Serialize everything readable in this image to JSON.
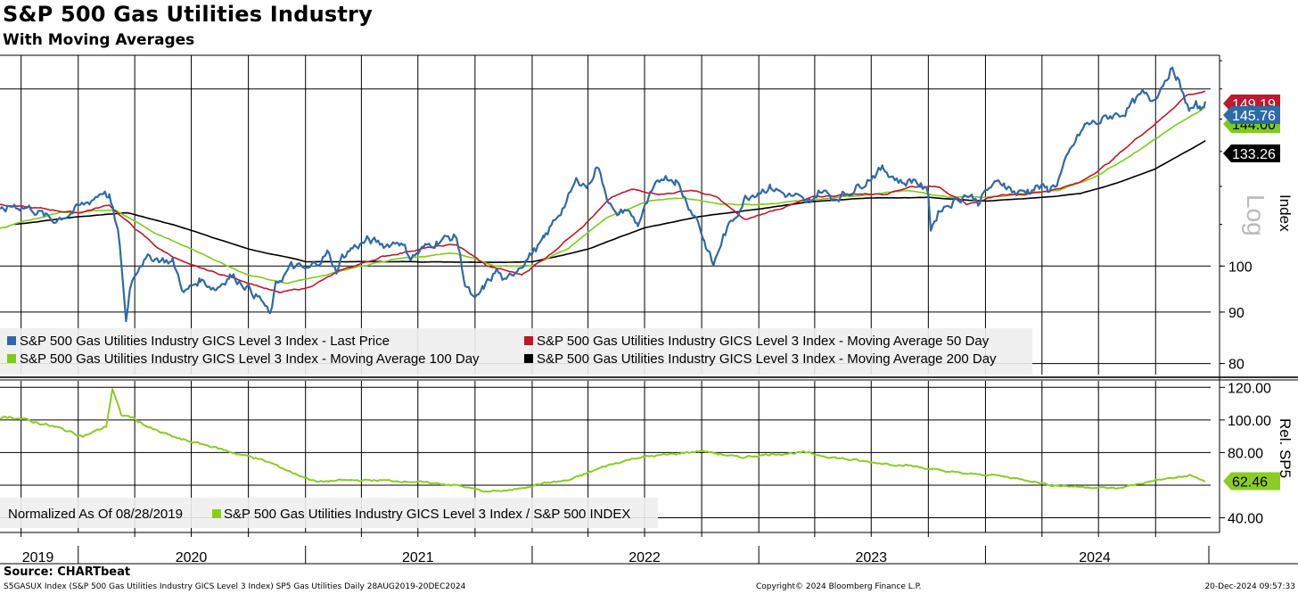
{
  "header": {
    "title": "S&P 500 Gas Utilities Industry",
    "subtitle": "With Moving Averages"
  },
  "footer": {
    "source": "Source: CHARTbeat",
    "left": "S5GASUX Index (S&P 500 Gas Utilities Industry GICS Level 3 Index) SP5 Gas Utilities  Daily 28AUG2019-20DEC2024",
    "middle": "Copyright© 2024 Bloomberg Finance L.P.",
    "right": "20-Dec-2024 09:57:33"
  },
  "colors": {
    "last_price": "#2e6aa8",
    "ma50": "#c0182c",
    "ma100": "#7dcc1c",
    "ma200": "#000000",
    "relative": "#8ccc22"
  },
  "chart_data": [
    {
      "type": "line",
      "scale": "log",
      "ylabel": "Index",
      "scale_label": "Log",
      "ylim": [
        78,
        162
      ],
      "yticks": [
        80,
        90,
        100
      ],
      "x_labels": [
        "2019",
        "2020",
        "2021",
        "2022",
        "2023",
        "2024"
      ],
      "x_range": [
        "2019-08-28",
        "2024-12-20"
      ],
      "grid": true,
      "legend_position": "bottom-left",
      "last_value_labels": [
        {
          "series": 0,
          "text": "145.76"
        },
        {
          "series": 1,
          "text": "149.19"
        },
        {
          "series": 2,
          "text": "144.00"
        },
        {
          "series": 3,
          "text": "133.26"
        }
      ],
      "series": [
        {
          "name": "S&P 500 Gas Utilities Industry GICS Level 3 Index - Last Price",
          "x": [
            "2019-08-28",
            "2019-09-20",
            "2019-10-20",
            "2019-11-20",
            "2019-12-20",
            "2020-01-20",
            "2020-02-10",
            "2020-02-20",
            "2020-03-05",
            "2020-03-12",
            "2020-03-18",
            "2020-03-25",
            "2020-04-10",
            "2020-05-01",
            "2020-06-01",
            "2020-06-20",
            "2020-07-15",
            "2020-08-10",
            "2020-09-01",
            "2020-09-25",
            "2020-10-10",
            "2020-10-25",
            "2020-11-05",
            "2020-11-15",
            "2020-12-10",
            "2021-01-05",
            "2021-01-20",
            "2021-02-05",
            "2021-02-20",
            "2021-03-01",
            "2021-03-15",
            "2021-04-10",
            "2021-05-10",
            "2021-06-01",
            "2021-06-20",
            "2021-07-10",
            "2021-08-01",
            "2021-09-01",
            "2021-09-15",
            "2021-10-01",
            "2021-10-15",
            "2021-11-05",
            "2021-11-20",
            "2021-12-10",
            "2022-01-01",
            "2022-01-20",
            "2022-02-10",
            "2022-03-01",
            "2022-03-15",
            "2022-04-01",
            "2022-04-15",
            "2022-05-01",
            "2022-05-15",
            "2022-06-01",
            "2022-06-20",
            "2022-07-10",
            "2022-08-01",
            "2022-08-20",
            "2022-09-10",
            "2022-09-25",
            "2022-10-05",
            "2022-10-20",
            "2022-11-05",
            "2022-11-20",
            "2022-12-10",
            "2023-01-01",
            "2023-01-20",
            "2023-02-10",
            "2023-03-01",
            "2023-03-20",
            "2023-04-10",
            "2023-05-01",
            "2023-05-20",
            "2023-06-10",
            "2023-07-01",
            "2023-07-20",
            "2023-08-05",
            "2023-08-20",
            "2023-09-10",
            "2023-10-01",
            "2023-10-05",
            "2023-10-20",
            "2023-11-10",
            "2023-12-01",
            "2023-12-20",
            "2024-01-10",
            "2024-02-01",
            "2024-02-20",
            "2024-03-10",
            "2024-03-25",
            "2024-04-10",
            "2024-04-25",
            "2024-05-10",
            "2024-05-25",
            "2024-06-10",
            "2024-07-01",
            "2024-07-20",
            "2024-08-10",
            "2024-08-25",
            "2024-09-10",
            "2024-09-25",
            "2024-10-10",
            "2024-10-25",
            "2024-11-05",
            "2024-11-15",
            "2024-11-25",
            "2024-12-05",
            "2024-12-12",
            "2024-12-20"
          ],
          "values": [
            113,
            115,
            114,
            111,
            113,
            116,
            119,
            117,
            108,
            98,
            88,
            96,
            101,
            102,
            101,
            94,
            97,
            95,
            98,
            96,
            94,
            92,
            89,
            96,
            100,
            99,
            101,
            103,
            99,
            102,
            104,
            106,
            105,
            106,
            102,
            104,
            106,
            107,
            96,
            92,
            95,
            99,
            96,
            100,
            103,
            106,
            112,
            117,
            122,
            120,
            126,
            118,
            112,
            114,
            110,
            117,
            123,
            122,
            115,
            111,
            106,
            100,
            107,
            111,
            117,
            119,
            120,
            118,
            117,
            115,
            119,
            117,
            118,
            120,
            123,
            125,
            123,
            121,
            122,
            118,
            109,
            114,
            116,
            118,
            116,
            120,
            121,
            118,
            119,
            120,
            119,
            121,
            127,
            133,
            138,
            139,
            141,
            142,
            145,
            148,
            146,
            151,
            157,
            154,
            147,
            143,
            144,
            143,
            145.76
          ]
        },
        {
          "name": "S&P 500 Gas Utilities Industry GICS Level 3 Index - Moving Average 50 Day",
          "x": [
            "2019-08-28",
            "2019-11-01",
            "2020-01-01",
            "2020-02-20",
            "2020-04-01",
            "2020-05-10",
            "2020-07-01",
            "2020-08-20",
            "2020-10-10",
            "2020-11-20",
            "2021-01-01",
            "2021-03-01",
            "2021-05-01",
            "2021-07-01",
            "2021-09-01",
            "2021-10-20",
            "2021-12-15",
            "2022-02-01",
            "2022-04-01",
            "2022-05-10",
            "2022-06-10",
            "2022-08-01",
            "2022-09-15",
            "2022-10-25",
            "2022-12-10",
            "2023-02-01",
            "2023-04-01",
            "2023-06-01",
            "2023-07-20",
            "2023-09-01",
            "2023-10-20",
            "2023-12-01",
            "2024-02-01",
            "2024-03-10",
            "2024-04-15",
            "2024-06-01",
            "2024-07-20",
            "2024-09-01",
            "2024-10-15",
            "2024-11-20",
            "2024-12-20"
          ],
          "values": [
            115,
            114,
            113,
            115,
            109,
            104,
            100,
            98,
            96,
            94,
            95,
            99,
            102,
            104,
            105,
            100,
            98,
            103,
            111,
            117,
            119,
            118,
            119,
            117,
            111,
            114,
            117,
            118,
            118,
            120,
            120,
            115,
            118,
            118,
            119,
            121,
            127,
            134,
            141,
            148,
            149.19
          ]
        },
        {
          "name": "S&P 500 Gas Utilities Industry GICS Level 3 Index - Moving Average 100 Day",
          "x": [
            "2019-08-28",
            "2019-12-01",
            "2020-03-01",
            "2020-05-01",
            "2020-08-01",
            "2020-10-01",
            "2020-12-01",
            "2021-03-01",
            "2021-06-01",
            "2021-09-01",
            "2021-11-01",
            "2022-01-01",
            "2022-03-01",
            "2022-05-01",
            "2022-07-01",
            "2022-09-01",
            "2022-11-01",
            "2023-01-01",
            "2023-03-01",
            "2023-05-01",
            "2023-07-01",
            "2023-09-01",
            "2023-11-01",
            "2024-01-01",
            "2024-03-01",
            "2024-05-01",
            "2024-07-01",
            "2024-09-01",
            "2024-11-01",
            "2024-12-20"
          ],
          "values": [
            109,
            113,
            114,
            108,
            102,
            98,
            96,
            99,
            102,
            103,
            100,
            100,
            104,
            112,
            116,
            117,
            115,
            115,
            116,
            117,
            118,
            119,
            117,
            117,
            118,
            119,
            123,
            130,
            138,
            144
          ]
        },
        {
          "name": "S&P 500 Gas Utilities Industry GICS Level 3 Index - Moving Average 200 Day",
          "x": [
            "2019-09-20",
            "2020-01-01",
            "2020-03-20",
            "2020-06-01",
            "2020-08-01",
            "2020-10-01",
            "2021-01-01",
            "2021-04-01",
            "2021-07-01",
            "2021-10-01",
            "2022-01-01",
            "2022-04-01",
            "2022-07-01",
            "2022-10-01",
            "2023-01-01",
            "2023-04-01",
            "2023-07-01",
            "2023-10-01",
            "2024-01-01",
            "2024-04-01",
            "2024-06-01",
            "2024-08-01",
            "2024-10-01",
            "2024-12-20"
          ],
          "values": [
            110,
            112,
            113,
            110,
            107,
            104,
            101,
            101,
            101,
            101,
            101,
            104,
            109,
            112,
            114,
            116,
            117,
            117,
            116,
            117,
            118,
            121,
            125,
            133.26
          ]
        }
      ]
    },
    {
      "type": "line",
      "ylabel": "Rel. SP5",
      "ylim": [
        31,
        124
      ],
      "yticks": [
        "40.00",
        "80.00",
        "100.00",
        "120.00"
      ],
      "normalized_label": "Normalized As Of 08/28/2019",
      "last_value_label": "62.46",
      "grid": true,
      "series": [
        {
          "name": "S&P 500 Gas Utilities Industry GICS Level 3 Index / S&P 500 INDEX",
          "x": [
            "2019-08-28",
            "2019-09-15",
            "2019-11-01",
            "2019-12-01",
            "2020-01-10",
            "2020-02-15",
            "2020-02-25",
            "2020-03-10",
            "2020-03-25",
            "2020-05-01",
            "2020-06-15",
            "2020-08-01",
            "2020-09-15",
            "2020-10-10",
            "2020-11-10",
            "2020-12-15",
            "2021-01-20",
            "2021-03-01",
            "2021-05-01",
            "2021-07-01",
            "2021-09-01",
            "2021-10-20",
            "2021-12-01",
            "2022-01-15",
            "2022-03-01",
            "2022-05-01",
            "2022-06-20",
            "2022-08-15",
            "2022-10-01",
            "2022-12-01",
            "2023-01-20",
            "2023-03-15",
            "2023-05-01",
            "2023-07-01",
            "2023-09-01",
            "2023-10-20",
            "2023-12-01",
            "2024-01-20",
            "2024-03-10",
            "2024-04-15",
            "2024-06-01",
            "2024-08-01",
            "2024-10-01",
            "2024-11-10",
            "2024-11-25",
            "2024-12-20"
          ],
          "values": [
            101,
            102,
            98,
            95,
            90,
            96,
            119,
            103,
            102,
            94,
            88,
            84,
            79,
            77,
            73,
            67,
            62,
            63,
            63,
            62,
            60,
            56,
            57,
            61,
            63,
            72,
            77,
            79,
            81,
            77,
            79,
            80,
            77,
            74,
            72,
            69,
            67,
            66,
            63,
            60,
            59,
            58,
            63,
            65,
            66,
            62.46
          ]
        }
      ]
    }
  ]
}
